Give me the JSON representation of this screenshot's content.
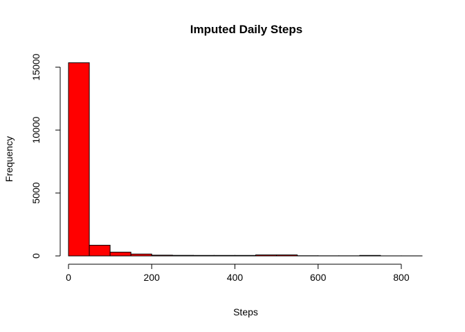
{
  "chart_data": {
    "type": "bar",
    "title": "Imputed Daily Steps",
    "xlabel": "Steps",
    "ylabel": "Frequency",
    "bin_width": 50,
    "bin_starts": [
      0,
      50,
      100,
      150,
      200,
      250,
      300,
      350,
      400,
      450,
      500,
      550,
      600,
      650,
      700,
      750,
      800
    ],
    "values": [
      15350,
      850,
      300,
      150,
      60,
      45,
      40,
      40,
      40,
      80,
      80,
      15,
      10,
      10,
      40,
      5,
      5
    ],
    "xlim": [
      0,
      850
    ],
    "ylim": [
      0,
      15500
    ],
    "x_ticks": [
      0,
      200,
      400,
      600,
      800
    ],
    "y_ticks": [
      0,
      5000,
      10000,
      15000
    ],
    "bar_color": "#FF0000",
    "bar_border_color": "#000000",
    "grid": false,
    "legend": false
  }
}
